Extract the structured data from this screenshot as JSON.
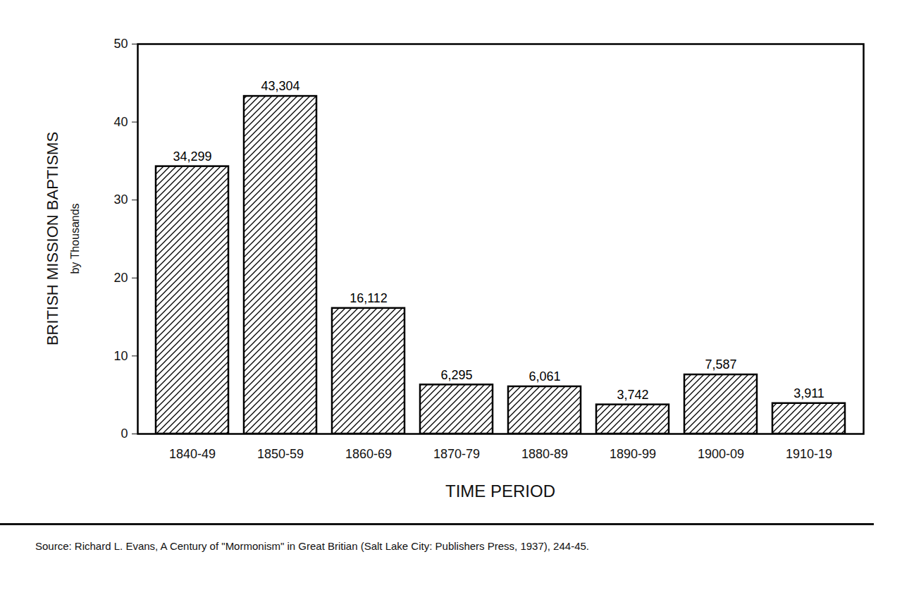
{
  "chart_data": {
    "type": "bar",
    "ylabel": "BRITISH MISSION BAPTISMS",
    "ylabel_note": "by Thousands",
    "xlabel": "TIME PERIOD",
    "caption": "Source:  Richard L. Evans, A Century of \"Mormonism\" in Great Britian (Salt Lake City:  Publishers Press, 1937), 244-45.",
    "categories": [
      "1840-49",
      "1850-59",
      "1860-69",
      "1870-79",
      "1880-89",
      "1890-99",
      "1900-09",
      "1910-19"
    ],
    "values": [
      34.299,
      43.304,
      16.112,
      6.295,
      6.061,
      3.742,
      7.587,
      3.911
    ],
    "value_labels": [
      "34,299",
      "43,304",
      "16,112",
      "6,295",
      "6,061",
      "3,742",
      "7,587",
      "3,911"
    ],
    "data_labels": true,
    "color": "#000000",
    "ylim": [
      0,
      50
    ],
    "yticks": [
      0,
      10,
      20,
      30,
      40,
      50
    ],
    "grid": false
  }
}
